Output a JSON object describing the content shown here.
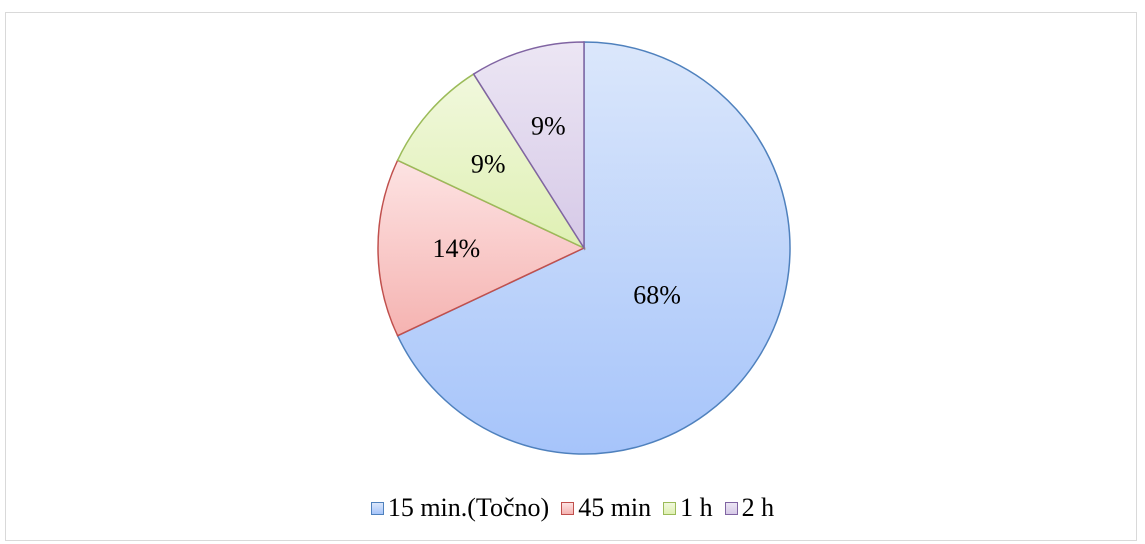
{
  "chart_data": {
    "type": "pie",
    "title": "",
    "slices": [
      {
        "label": "15 min.(Točno)",
        "value": 68,
        "display": "68%",
        "fill_top": "#dbe7fb",
        "fill_bottom": "#a6c4fa",
        "stroke": "#4f81bd"
      },
      {
        "label": "45 min",
        "value": 14,
        "display": "14%",
        "fill_top": "#fde3e3",
        "fill_bottom": "#f5b3b1",
        "stroke": "#c0504d"
      },
      {
        "label": "1 h",
        "value": 9,
        "display": "9%",
        "fill_top": "#f1f8dd",
        "fill_bottom": "#dff0b3",
        "stroke": "#9bbb59"
      },
      {
        "label": "2 h",
        "value": 9,
        "display": "9%",
        "fill_top": "#ece6f4",
        "fill_bottom": "#d6c9e7",
        "stroke": "#8064a2"
      }
    ],
    "legend_position": "bottom",
    "start_angle": "12 o'clock",
    "direction": "clockwise"
  }
}
